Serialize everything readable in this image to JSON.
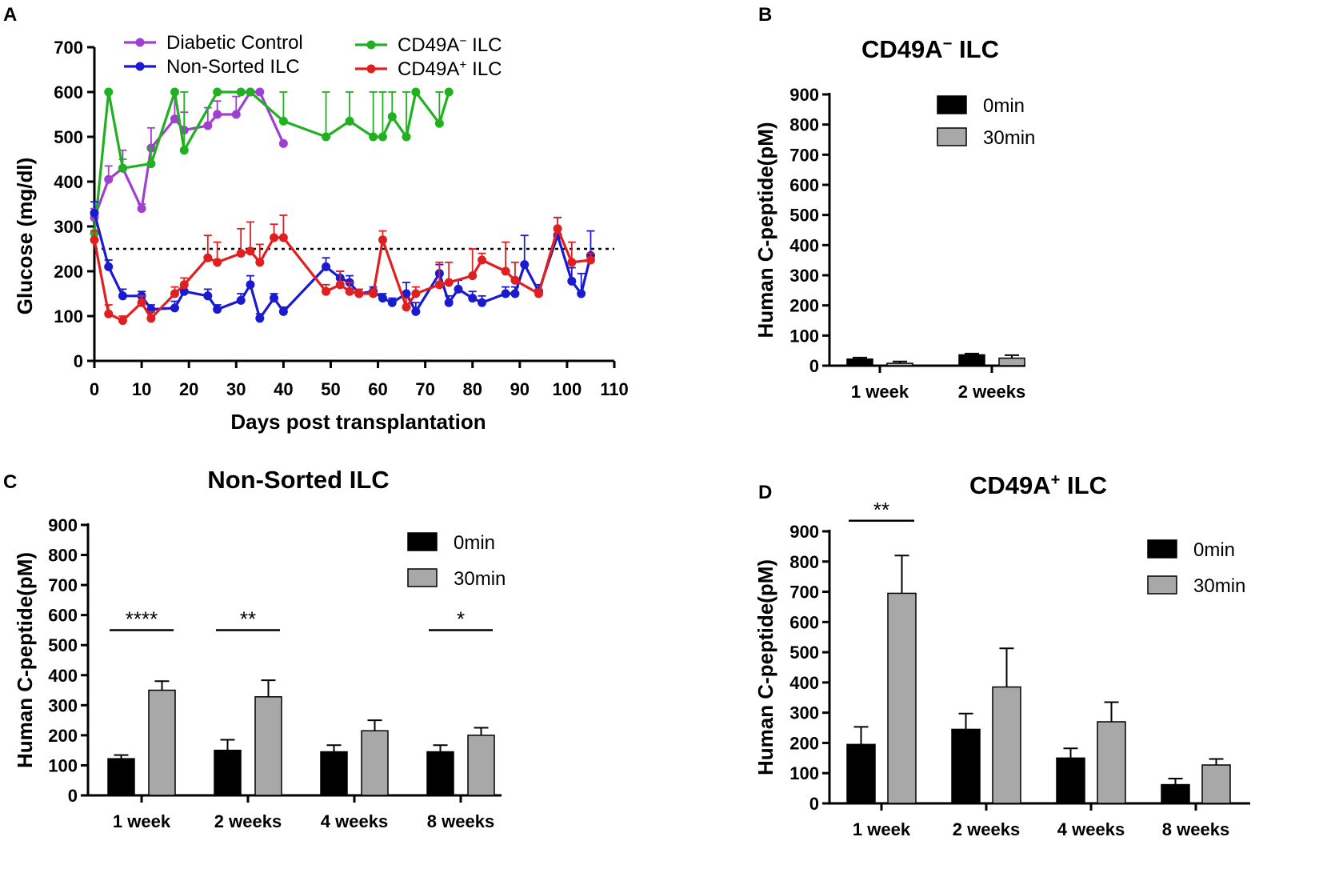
{
  "chart_data": [
    {
      "panel": "A",
      "type": "line",
      "title": "",
      "xlabel": "Days post transplantation",
      "ylabel": "Glucose (mg/dl)",
      "xlim": [
        0,
        110
      ],
      "ylim": [
        0,
        700
      ],
      "xticks": [
        0,
        10,
        20,
        30,
        40,
        50,
        60,
        70,
        80,
        90,
        100,
        110
      ],
      "yticks": [
        0,
        100,
        200,
        300,
        400,
        500,
        600,
        700
      ],
      "threshold": 250,
      "legend": [
        {
          "label": "Diabetic Control",
          "color": "#a040d0"
        },
        {
          "label": "Non-Sorted ILC",
          "color": "#1a1ad0"
        },
        {
          "label_main": "CD49A",
          "label_sup": "−",
          "label_tail": " ILC",
          "color": "#20b020"
        },
        {
          "label_main": "CD49A",
          "label_sup": "+",
          "label_tail": " ILC",
          "color": "#e02020"
        }
      ],
      "series": [
        {
          "name": "Diabetic Control",
          "color": "#a040d0",
          "x": [
            0,
            3,
            6,
            10,
            12,
            17,
            19,
            24,
            26,
            30,
            33,
            35,
            40
          ],
          "y": [
            320,
            405,
            430,
            340,
            475,
            540,
            515,
            525,
            550,
            550,
            600,
            600,
            485
          ],
          "err": [
            20,
            30,
            40,
            10,
            45,
            60,
            40,
            40,
            30,
            40,
            0,
            0,
            0
          ]
        },
        {
          "name": "CD49A− ILC",
          "color": "#20b020",
          "x": [
            0,
            3,
            6,
            12,
            17,
            19,
            26,
            31,
            33,
            40,
            49,
            54,
            59,
            61,
            63,
            66,
            68,
            73,
            75
          ],
          "y": [
            285,
            600,
            430,
            440,
            600,
            470,
            600,
            600,
            600,
            535,
            500,
            535,
            500,
            500,
            545,
            500,
            600,
            530,
            600
          ],
          "err": [
            0,
            0,
            20,
            35,
            0,
            130,
            0,
            0,
            0,
            65,
            100,
            65,
            100,
            100,
            55,
            100,
            0,
            70,
            0
          ]
        },
        {
          "name": "Non-Sorted ILC",
          "color": "#1a1ad0",
          "x": [
            0,
            3,
            6,
            10,
            12,
            17,
            19,
            24,
            26,
            31,
            33,
            35,
            38,
            40,
            49,
            52,
            54,
            56,
            59,
            61,
            63,
            66,
            68,
            73,
            75,
            77,
            80,
            82,
            87,
            89,
            91,
            94,
            98,
            101,
            103,
            105
          ],
          "y": [
            330,
            210,
            145,
            145,
            115,
            118,
            155,
            145,
            115,
            135,
            170,
            95,
            140,
            110,
            210,
            185,
            175,
            150,
            155,
            140,
            130,
            150,
            110,
            195,
            130,
            160,
            140,
            130,
            150,
            150,
            215,
            155,
            280,
            178,
            150,
            235
          ],
          "err": [
            25,
            15,
            15,
            10,
            10,
            15,
            15,
            15,
            10,
            15,
            20,
            10,
            10,
            10,
            20,
            15,
            15,
            10,
            10,
            10,
            10,
            25,
            20,
            20,
            15,
            20,
            15,
            15,
            15,
            15,
            65,
            15,
            40,
            30,
            45,
            55
          ]
        },
        {
          "name": "CD49A+ ILC",
          "color": "#e02020",
          "x": [
            0,
            3,
            6,
            10,
            12,
            17,
            19,
            24,
            26,
            31,
            33,
            35,
            38,
            40,
            49,
            52,
            54,
            56,
            59,
            61,
            66,
            68,
            73,
            75,
            80,
            82,
            87,
            89,
            94,
            98,
            101,
            105
          ],
          "y": [
            270,
            105,
            90,
            130,
            95,
            150,
            170,
            230,
            220,
            240,
            245,
            220,
            275,
            275,
            155,
            170,
            155,
            150,
            150,
            270,
            120,
            150,
            170,
            175,
            190,
            225,
            200,
            180,
            150,
            295,
            220,
            225
          ],
          "err": [
            20,
            20,
            10,
            15,
            15,
            15,
            15,
            50,
            45,
            55,
            65,
            40,
            30,
            50,
            15,
            30,
            20,
            10,
            10,
            20,
            20,
            15,
            50,
            45,
            60,
            15,
            65,
            40,
            10,
            25,
            45,
            15
          ]
        }
      ]
    },
    {
      "panel": "B",
      "type": "bar",
      "title_main": "CD49A",
      "title_sup": "−",
      "title_tail": " ILC",
      "xlabel": "",
      "ylabel": "Human C-peptide(pM)",
      "ylim": [
        0,
        900
      ],
      "yticks": [
        0,
        100,
        200,
        300,
        400,
        500,
        600,
        700,
        800,
        900
      ],
      "categories": [
        "1 week",
        "2 weeks"
      ],
      "series": [
        {
          "name": "0min",
          "color": "#000000",
          "values": [
            22,
            36
          ],
          "err": [
            5,
            4
          ]
        },
        {
          "name": "30min",
          "color": "#a8a8a8",
          "values": [
            8,
            25
          ],
          "err": [
            6,
            10
          ]
        }
      ],
      "significance": []
    },
    {
      "panel": "C",
      "type": "bar",
      "title": "Non-Sorted ILC",
      "xlabel": "",
      "ylabel": "Human C-peptide(pM)",
      "ylim": [
        0,
        900
      ],
      "yticks": [
        0,
        100,
        200,
        300,
        400,
        500,
        600,
        700,
        800,
        900
      ],
      "categories": [
        "1 week",
        "2 weeks",
        "4 weeks",
        "8 weeks"
      ],
      "series": [
        {
          "name": "0min",
          "color": "#000000",
          "values": [
            122,
            150,
            145,
            145
          ],
          "err": [
            12,
            35,
            22,
            22
          ]
        },
        {
          "name": "30min",
          "color": "#a8a8a8",
          "values": [
            350,
            328,
            215,
            200
          ],
          "err": [
            30,
            55,
            35,
            25
          ]
        }
      ],
      "significance": [
        {
          "category": 0,
          "label": "****",
          "y": 550
        },
        {
          "category": 1,
          "label": "**",
          "y": 550
        },
        {
          "category": 3,
          "label": "*",
          "y": 550
        }
      ]
    },
    {
      "panel": "D",
      "type": "bar",
      "title_main": "CD49A",
      "title_sup": "+",
      "title_tail": " ILC",
      "xlabel": "",
      "ylabel": "Human C-peptide(pM)",
      "ylim": [
        0,
        900
      ],
      "yticks": [
        0,
        100,
        200,
        300,
        400,
        500,
        600,
        700,
        800,
        900
      ],
      "categories": [
        "1 week",
        "2 weeks",
        "4 weeks",
        "8 weeks"
      ],
      "series": [
        {
          "name": "0min",
          "color": "#000000",
          "values": [
            195,
            245,
            150,
            62
          ],
          "err": [
            58,
            52,
            32,
            20
          ]
        },
        {
          "name": "30min",
          "color": "#a8a8a8",
          "values": [
            695,
            385,
            270,
            127
          ],
          "err": [
            125,
            128,
            65,
            20
          ]
        }
      ],
      "significance": [
        {
          "category": 0,
          "label": "**",
          "y": 935
        }
      ]
    }
  ]
}
